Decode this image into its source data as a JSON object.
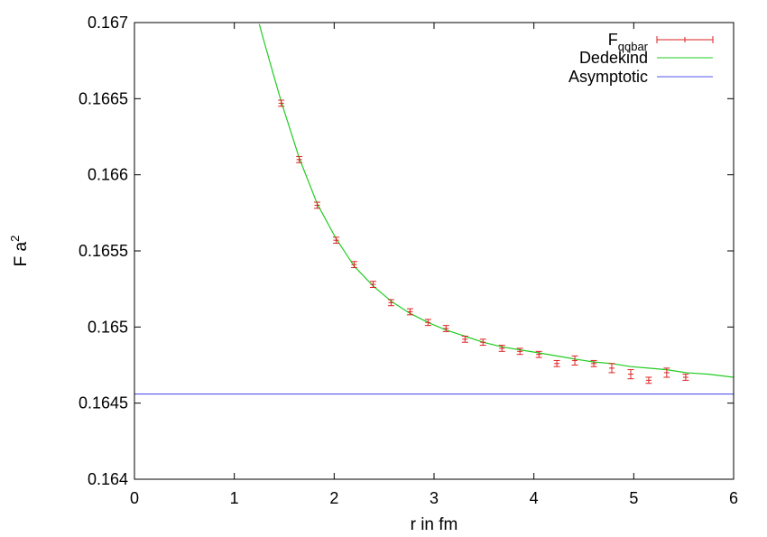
{
  "chart_data": {
    "type": "scatter",
    "title": "",
    "xlabel": "r in fm",
    "ylabel_base": "F a",
    "ylabel_sup": "2",
    "xlim": [
      0,
      6
    ],
    "ylim": [
      0.164,
      0.167
    ],
    "x_ticks": [
      0,
      1,
      2,
      3,
      4,
      5,
      6
    ],
    "x_tick_labels": [
      "0",
      "1",
      "2",
      "3",
      "4",
      "5",
      "6"
    ],
    "y_ticks": [
      0.164,
      0.1645,
      0.165,
      0.1655,
      0.166,
      0.1665,
      0.167
    ],
    "y_tick_labels": [
      "0.164",
      "0.1645",
      "0.165",
      "0.1655",
      "0.166",
      "0.1665",
      "0.167"
    ],
    "grid": false,
    "legend_position": "top-right",
    "series": [
      {
        "name_base": "F",
        "name_sub": "qqbar",
        "kind": "errorbar-points",
        "color": "#dd2222",
        "x": [
          1.47,
          1.65,
          1.83,
          2.02,
          2.2,
          2.39,
          2.57,
          2.76,
          2.94,
          3.12,
          3.31,
          3.49,
          3.68,
          3.86,
          4.05,
          4.23,
          4.41,
          4.6,
          4.78,
          4.97,
          5.15,
          5.33,
          5.52
        ],
        "y": [
          0.16647,
          0.1661,
          0.1658,
          0.16557,
          0.16541,
          0.16528,
          0.16516,
          0.1651,
          0.16503,
          0.16499,
          0.16492,
          0.1649,
          0.16486,
          0.16484,
          0.16482,
          0.16476,
          0.16478,
          0.16476,
          0.16473,
          0.16469,
          0.16465,
          0.1647,
          0.16467
        ],
        "err": [
          2e-05,
          2e-05,
          2e-05,
          2e-05,
          2e-05,
          2e-05,
          2e-05,
          2e-05,
          2e-05,
          2e-05,
          2e-05,
          2e-05,
          2e-05,
          2e-05,
          2e-05,
          2e-05,
          3e-05,
          2e-05,
          3e-05,
          3e-05,
          2e-05,
          3e-05,
          2e-05
        ]
      },
      {
        "name": "Dedekind",
        "kind": "line",
        "color": "#22cc22",
        "x": [
          1.25,
          1.3,
          1.4,
          1.47,
          1.65,
          1.83,
          2.02,
          2.2,
          2.39,
          2.57,
          2.76,
          2.94,
          3.12,
          3.31,
          3.49,
          3.68,
          3.86,
          4.05,
          4.23,
          4.41,
          4.6,
          4.78,
          4.97,
          5.15,
          5.33,
          5.52,
          5.75,
          6.0
        ],
        "y": [
          0.16699,
          0.16687,
          0.16664,
          0.16648,
          0.16611,
          0.16581,
          0.16558,
          0.1654,
          0.16527,
          0.16517,
          0.16509,
          0.16503,
          0.16498,
          0.16494,
          0.1649,
          0.16487,
          0.16485,
          0.16483,
          0.16481,
          0.16479,
          0.16477,
          0.16476,
          0.16474,
          0.16473,
          0.16472,
          0.1647,
          0.16469,
          0.16467
        ]
      },
      {
        "name": "Asymptotic",
        "kind": "hline",
        "color": "#5555ee",
        "y": 0.16456
      }
    ]
  }
}
